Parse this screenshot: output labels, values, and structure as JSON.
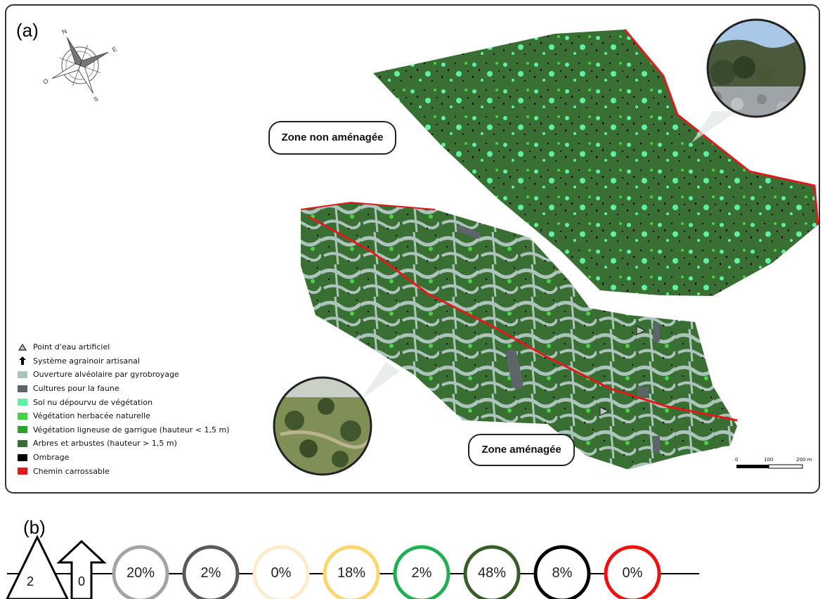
{
  "panel_a": {
    "letter": "(a)",
    "zone_non": "Zone non aménagée",
    "zone_am": "Zone aménagée",
    "compass": {
      "n": "N",
      "s": "S",
      "e": "E",
      "o": "O"
    },
    "scale": {
      "ticks": [
        "0",
        "100",
        "200 m"
      ]
    },
    "legend": [
      {
        "label": "Point d'eau artificiel",
        "symbol": "triangle-icon",
        "color": "#b9c7c2"
      },
      {
        "label": "Système agrainoir artisanal",
        "symbol": "arrow-up-icon",
        "color": "#000000"
      },
      {
        "label": "Ouverture alvéolaire par gyrobroyage",
        "symbol": "swatch",
        "color": "#adc4bd"
      },
      {
        "label": "Cultures pour la faune",
        "symbol": "swatch",
        "color": "#5e6568"
      },
      {
        "label": "Sol nu dépourvu de végétation",
        "symbol": "swatch",
        "color": "#5ef0a4"
      },
      {
        "label": "Végétation herbacée naturelle",
        "symbol": "swatch",
        "color": "#47d344"
      },
      {
        "label": "Végétation ligneuse de garrigue (hauteur < 1,5 m)",
        "symbol": "swatch",
        "color": "#2ea12c"
      },
      {
        "label": "Arbres et arbustes (hauteur > 1,5 m)",
        "symbol": "swatch",
        "color": "#3a6f34"
      },
      {
        "label": "Ombrage",
        "symbol": "swatch",
        "color": "#000000"
      },
      {
        "label": "Chemin carrossable",
        "symbol": "swatch",
        "color": "#e01a1a"
      }
    ],
    "colors": {
      "trees": "#3a6f34",
      "garrigue": "#2ea12c",
      "herb": "#47d344",
      "bare": "#5ef0a4",
      "opening": "#adc4bd",
      "crops": "#5e6568",
      "shadow": "#000000",
      "road": "#e01a1a"
    }
  },
  "panel_b": {
    "letter": "(b)",
    "triangle_value": "2",
    "arrow_value": "0",
    "circles": [
      {
        "value": "20%",
        "color": "#a3a3a3"
      },
      {
        "value": "2%",
        "color": "#5a5a5a"
      },
      {
        "value": "0%",
        "color": "#fdeccc"
      },
      {
        "value": "18%",
        "color": "#fdd66b"
      },
      {
        "value": "2%",
        "color": "#1fb04f"
      },
      {
        "value": "48%",
        "color": "#385d27"
      },
      {
        "value": "8%",
        "color": "#000000"
      },
      {
        "value": "0%",
        "color": "#ee1111"
      }
    ]
  }
}
